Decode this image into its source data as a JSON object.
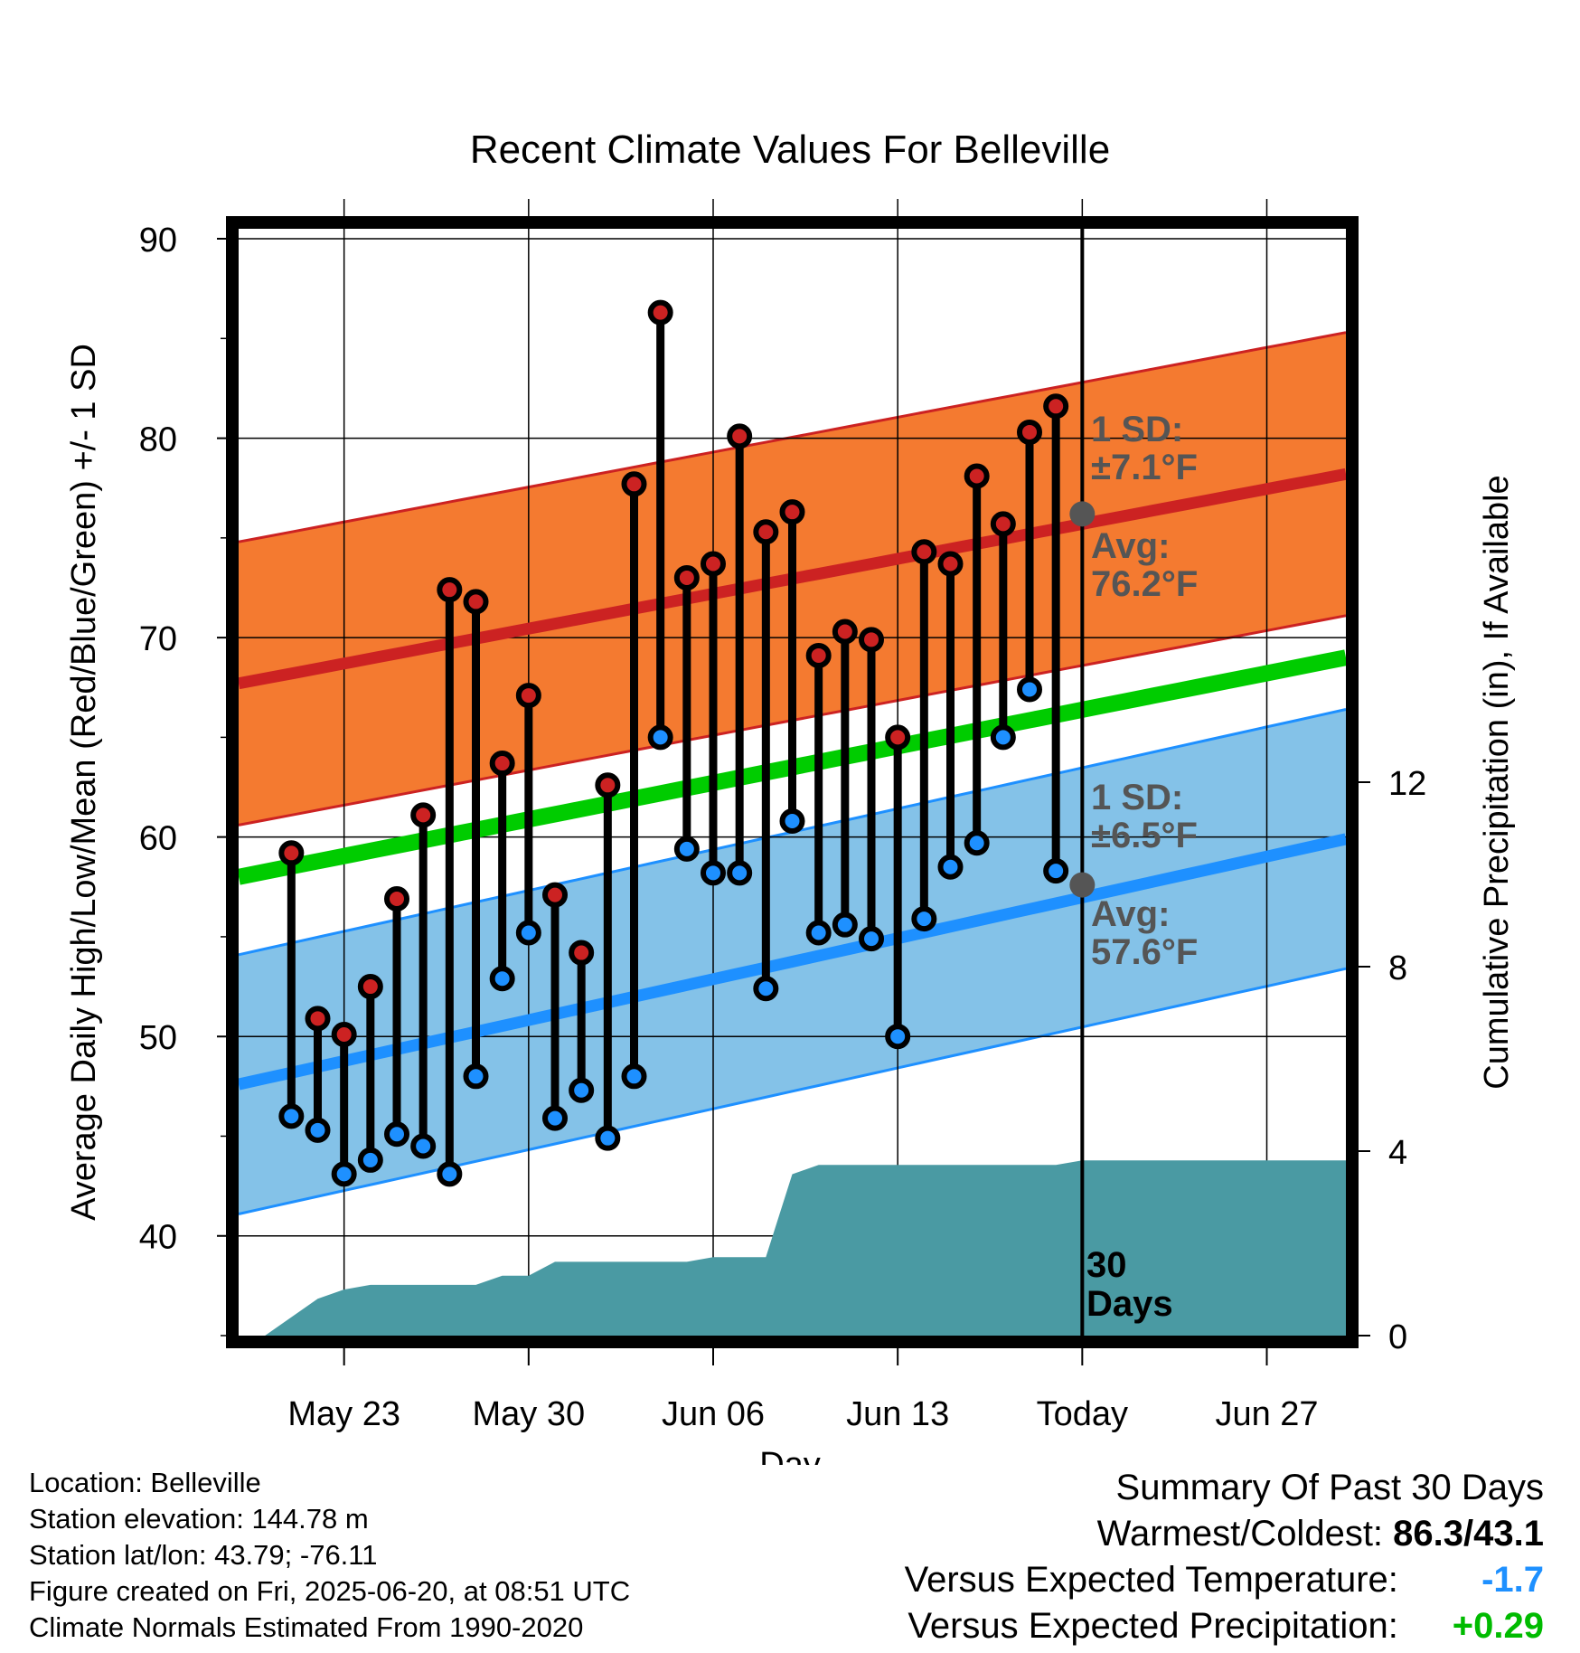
{
  "chart_data": {
    "type": "line",
    "title": "Recent Climate Values For Belleville",
    "xlabel": "Day",
    "ylabel": "Average Daily High/Low/Mean (Red/Blue/Green) +/- 1 SD",
    "y2label": "Cumulative Precipitation (in), If Available",
    "ylim": [
      35,
      90.5
    ],
    "y2lim": [
      0,
      24
    ],
    "xlim": [
      "May 19",
      "Jun 30"
    ],
    "x_ticks": [
      {
        "date": "May 23",
        "label": "May 23"
      },
      {
        "date": "May 30",
        "label": "May 30"
      },
      {
        "date": "Jun 06",
        "label": "Jun 06"
      },
      {
        "date": "Jun 13",
        "label": "Jun 13"
      },
      {
        "date": "Jun 20",
        "label": "Today"
      },
      {
        "date": "Jun 27",
        "label": "Jun 27"
      }
    ],
    "y_ticks": [
      40,
      50,
      60,
      70,
      80,
      90
    ],
    "y2_ticks": [
      0,
      4,
      8,
      12
    ],
    "grid": true,
    "today": "Jun 20",
    "days": [
      "May 21",
      "May 22",
      "May 23",
      "May 24",
      "May 25",
      "May 26",
      "May 27",
      "May 28",
      "May 29",
      "May 30",
      "May 31",
      "Jun 01",
      "Jun 02",
      "Jun 03",
      "Jun 04",
      "Jun 05",
      "Jun 06",
      "Jun 07",
      "Jun 08",
      "Jun 09",
      "Jun 10",
      "Jun 11",
      "Jun 12",
      "Jun 13",
      "Jun 14",
      "Jun 15",
      "Jun 16",
      "Jun 17",
      "Jun 18",
      "Jun 19"
    ],
    "series": [
      {
        "name": "High",
        "color": "#cc2222",
        "values": [
          59.2,
          50.9,
          50.1,
          52.5,
          56.9,
          61.1,
          72.4,
          71.8,
          63.7,
          67.1,
          57.1,
          54.2,
          62.6,
          77.7,
          86.3,
          73.0,
          73.7,
          80.1,
          75.3,
          76.3,
          69.1,
          70.3,
          69.9,
          65.0,
          74.3,
          73.7,
          78.1,
          75.7,
          80.3,
          81.6
        ]
      },
      {
        "name": "Low",
        "color": "#1e90ff",
        "values": [
          46.0,
          45.3,
          43.1,
          43.8,
          45.1,
          44.5,
          43.1,
          48.0,
          52.9,
          55.2,
          45.9,
          47.3,
          44.9,
          48.0,
          65.0,
          59.4,
          58.2,
          58.2,
          52.4,
          60.8,
          55.2,
          55.6,
          54.9,
          50.0,
          55.9,
          58.5,
          59.7,
          65.0,
          67.4,
          58.3
        ]
      }
    ],
    "normals": {
      "high_mean": {
        "start": 67.7,
        "end": 78.2,
        "color": "#cc2222"
      },
      "high_sd": 7.1,
      "low_mean": {
        "start": 47.6,
        "end": 59.9,
        "color": "#1e90ff"
      },
      "low_sd": 6.5,
      "mean": {
        "start": 58.0,
        "end": 69.0,
        "color": "#00cc00"
      }
    },
    "precipitation": {
      "color": "#4a9aa3",
      "points": [
        {
          "date": "May 20",
          "value": 0.0
        },
        {
          "date": "May 22",
          "value": 0.8
        },
        {
          "date": "May 23",
          "value": 1.0
        },
        {
          "date": "May 24",
          "value": 1.1
        },
        {
          "date": "May 28",
          "value": 1.1
        },
        {
          "date": "May 29",
          "value": 1.3
        },
        {
          "date": "May 30",
          "value": 1.3
        },
        {
          "date": "May 31",
          "value": 1.6
        },
        {
          "date": "Jun 05",
          "value": 1.6
        },
        {
          "date": "Jun 06",
          "value": 1.7
        },
        {
          "date": "Jun 08",
          "value": 1.7
        },
        {
          "date": "Jun 09",
          "value": 3.5
        },
        {
          "date": "Jun 10",
          "value": 3.7
        },
        {
          "date": "Jun 19",
          "value": 3.7
        },
        {
          "date": "Jun 20",
          "value": 3.8
        },
        {
          "date": "Jun 30",
          "value": 3.8
        }
      ]
    },
    "annotations": {
      "high_sd": "1 SD:",
      "high_sd_value": "±7.1°F",
      "high_avg": "Avg:",
      "high_avg_value": "76.2°F",
      "low_sd": "1 SD:",
      "low_sd_value": "±6.5°F",
      "low_avg": "Avg:",
      "low_avg_value": "57.6°F",
      "today_high_avg": 76.2,
      "today_low_avg": 57.6,
      "days_line1": "30",
      "days_line2": "Days"
    }
  },
  "info": {
    "location": "Location: Belleville",
    "elevation": "Station elevation: 144.78 m",
    "latlon": "Station lat/lon: 43.79; -76.11",
    "created": "Figure created on Fri, 2025-06-20, at 08:51 UTC",
    "normals": "Climate Normals Estimated From 1990-2020"
  },
  "summary": {
    "heading": "Summary Of Past 30 Days",
    "warm_cold_label": "Warmest/Coldest:",
    "warm_cold_value": "86.3/43.1",
    "temp_label": "Versus Expected Temperature:",
    "temp_value": "-1.7",
    "temp_color": "#1e90ff",
    "precip_label": "Versus Expected Precipitation:",
    "precip_value": "+0.29",
    "precip_color": "#00bb00"
  }
}
